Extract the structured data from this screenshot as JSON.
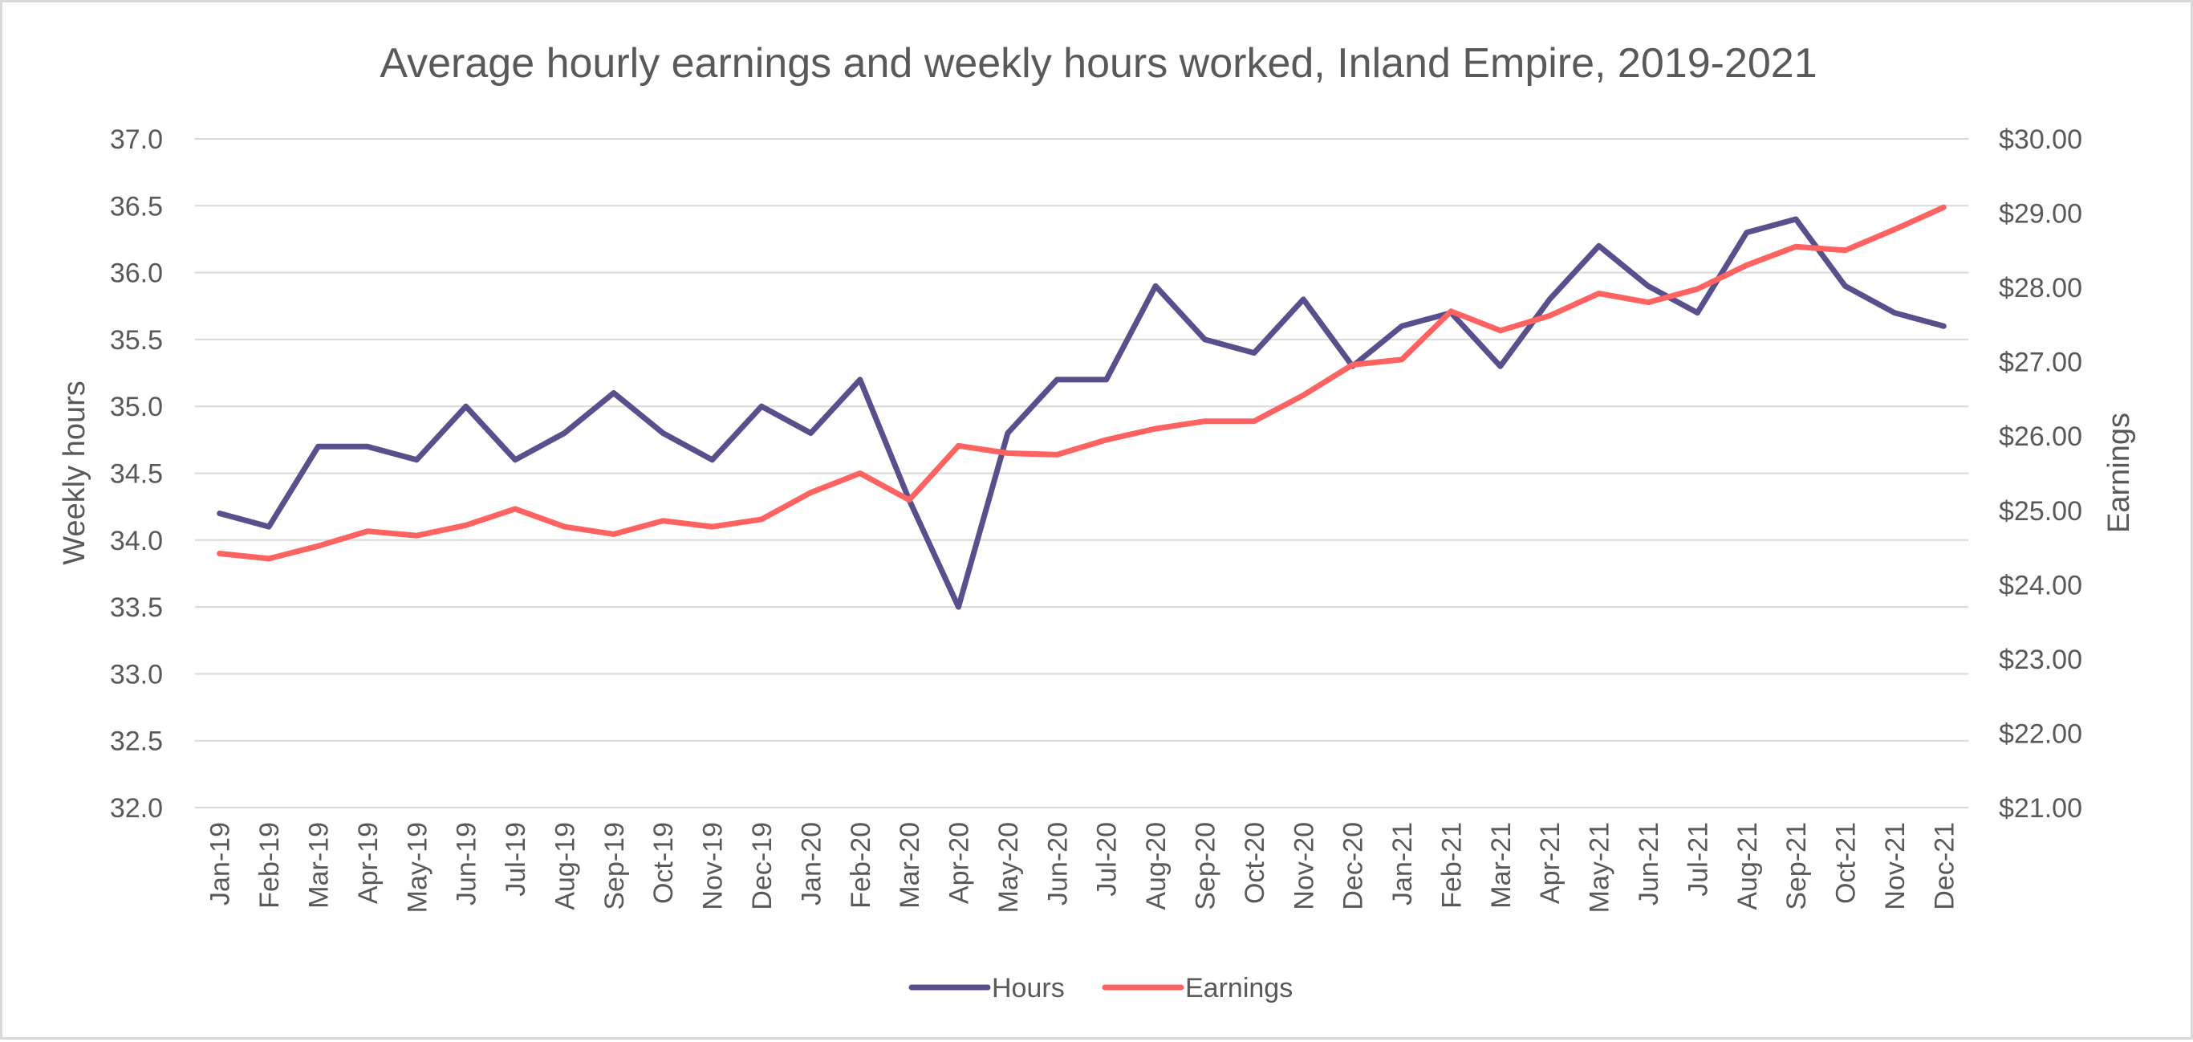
{
  "chart_data": {
    "type": "line",
    "title": "Average hourly earnings and weekly hours worked, Inland Empire, 2019-2021",
    "categories": [
      "Jan-19",
      "Feb-19",
      "Mar-19",
      "Apr-19",
      "May-19",
      "Jun-19",
      "Jul-19",
      "Aug-19",
      "Sep-19",
      "Oct-19",
      "Nov-19",
      "Dec-19",
      "Jan-20",
      "Feb-20",
      "Mar-20",
      "Apr-20",
      "May-20",
      "Jun-20",
      "Jul-20",
      "Aug-20",
      "Sep-20",
      "Oct-20",
      "Nov-20",
      "Dec-20",
      "Jan-21",
      "Feb-21",
      "Mar-21",
      "Apr-21",
      "May-21",
      "Jun-21",
      "Jul-21",
      "Aug-21",
      "Sep-21",
      "Oct-21",
      "Nov-21",
      "Dec-21"
    ],
    "y_left": {
      "label": "Weekly hours",
      "min": 32.0,
      "max": 37.0,
      "step": 0.5,
      "tick_labels": [
        "32.0",
        "32.5",
        "33.0",
        "33.5",
        "34.0",
        "34.5",
        "35.0",
        "35.5",
        "36.0",
        "36.5",
        "37.0"
      ]
    },
    "y_right": {
      "label": "Earnings",
      "min": 21.0,
      "max": 30.0,
      "step": 1.0,
      "tick_labels": [
        "$21.00",
        "$22.00",
        "$23.00",
        "$24.00",
        "$25.00",
        "$26.00",
        "$27.00",
        "$28.00",
        "$29.00",
        "$30.00"
      ]
    },
    "grid": true,
    "legend_position": "bottom",
    "series": [
      {
        "name": "Hours",
        "axis": "left",
        "color": "#58508d",
        "values": [
          34.2,
          34.1,
          34.7,
          34.7,
          34.6,
          35.0,
          34.6,
          34.8,
          35.1,
          34.8,
          34.6,
          35.0,
          34.8,
          35.2,
          34.3,
          33.5,
          34.8,
          35.2,
          35.2,
          35.9,
          35.5,
          35.4,
          35.8,
          35.3,
          35.6,
          35.7,
          35.3,
          35.8,
          36.2,
          35.9,
          35.7,
          36.3,
          36.4,
          35.9,
          35.7,
          35.6
        ]
      },
      {
        "name": "Earnings",
        "axis": "right",
        "color": "#ff6361",
        "values": [
          24.42,
          24.35,
          24.52,
          24.72,
          24.66,
          24.8,
          25.02,
          24.78,
          24.68,
          24.86,
          24.78,
          24.88,
          25.24,
          25.5,
          25.14,
          25.87,
          25.77,
          25.75,
          25.95,
          26.1,
          26.2,
          26.2,
          26.55,
          26.96,
          27.03,
          27.68,
          27.42,
          27.62,
          27.92,
          27.8,
          27.98,
          28.3,
          28.55,
          28.5,
          28.78,
          29.08
        ]
      }
    ]
  }
}
